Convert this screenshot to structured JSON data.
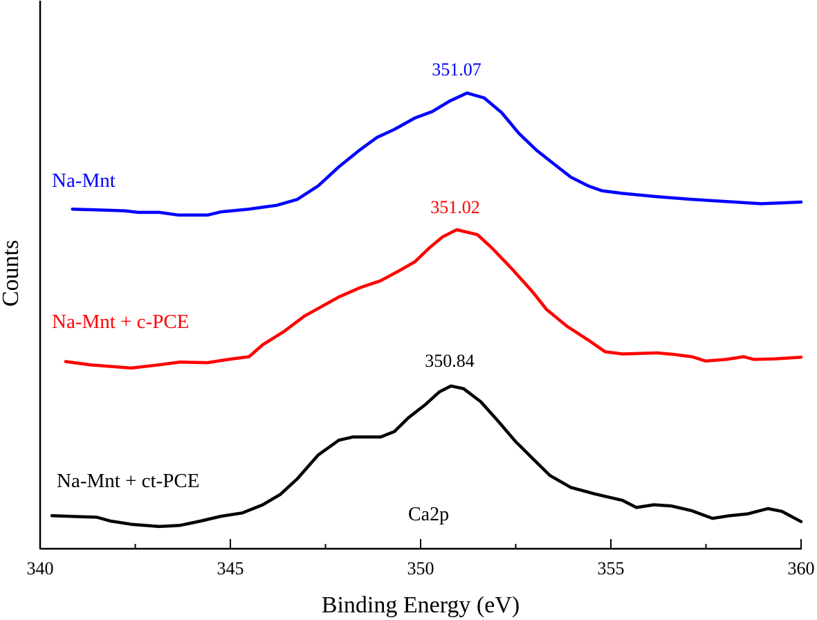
{
  "chart_data": {
    "type": "line",
    "title": "",
    "xlabel": "Binding Energy (eV)",
    "ylabel": "Counts",
    "xlim": [
      340,
      360
    ],
    "ylim": [
      0,
      100
    ],
    "xticks": [
      340,
      345,
      350,
      355,
      360
    ],
    "xminor_ticks": [
      342.5,
      347.5,
      352.5,
      357.5
    ],
    "yticks": [],
    "grid": false,
    "legend": "none",
    "annotations": [
      {
        "text": "Ca2p"
      }
    ],
    "series": [
      {
        "name": "Na-Mnt",
        "color": "#0000ff",
        "peak_label": "351.07",
        "x": [
          340.85,
          342.22,
          342.58,
          343.13,
          343.64,
          344.4,
          344.76,
          345.49,
          346.22,
          346.76,
          347.31,
          347.85,
          348.4,
          348.85,
          349.31,
          349.85,
          350.31,
          350.76,
          351.22,
          351.67,
          352.13,
          352.58,
          353.04,
          353.49,
          353.95,
          354.4,
          354.76,
          355.31,
          356.22,
          357.13,
          358.04,
          358.95,
          360.0
        ],
        "y": [
          62.6,
          62.3,
          62.0,
          62.0,
          61.5,
          61.5,
          62.1,
          62.6,
          63.3,
          64.4,
          66.9,
          70.4,
          73.5,
          75.8,
          77.3,
          79.4,
          80.6,
          82.5,
          84.0,
          83.1,
          80.4,
          76.6,
          73.5,
          71.0,
          68.5,
          66.9,
          66.0,
          65.5,
          64.9,
          64.4,
          64.0,
          63.6,
          63.9
        ]
      },
      {
        "name": "Na-Mnt + c-PCE",
        "color": "#ff0000",
        "peak_label": "351.02",
        "x": [
          340.67,
          341.31,
          342.4,
          343.13,
          343.67,
          344.4,
          344.95,
          345.49,
          345.85,
          346.4,
          346.95,
          347.49,
          347.85,
          348.4,
          348.95,
          349.4,
          349.85,
          350.22,
          350.58,
          350.95,
          351.49,
          351.85,
          352.4,
          352.95,
          353.31,
          353.85,
          354.4,
          354.85,
          355.31,
          356.22,
          356.67,
          357.13,
          357.49,
          358.04,
          358.49,
          358.76,
          359.31,
          360.0
        ],
        "y": [
          34.5,
          33.9,
          33.3,
          33.9,
          34.4,
          34.3,
          34.9,
          35.4,
          37.6,
          40.0,
          42.9,
          45.0,
          46.4,
          48.1,
          49.4,
          51.1,
          52.9,
          55.4,
          57.5,
          58.8,
          57.9,
          55.6,
          51.6,
          47.3,
          44.1,
          41.0,
          38.5,
          36.3,
          35.9,
          36.1,
          35.8,
          35.4,
          34.6,
          34.9,
          35.4,
          34.9,
          35.0,
          35.3
        ]
      },
      {
        "name": "Na-Mnt + ct-PCE",
        "color": "#000000",
        "peak_label": "350.84",
        "x": [
          340.31,
          341.49,
          341.85,
          342.4,
          343.13,
          343.67,
          344.22,
          344.76,
          345.31,
          345.85,
          346.31,
          346.76,
          347.31,
          347.85,
          348.22,
          348.95,
          349.31,
          349.67,
          350.13,
          350.49,
          350.8,
          351.13,
          351.58,
          352.04,
          352.49,
          352.95,
          353.4,
          353.95,
          354.58,
          355.31,
          355.67,
          356.13,
          356.58,
          357.13,
          357.67,
          358.13,
          358.58,
          359.13,
          359.49,
          360.0
        ],
        "y": [
          6.1,
          5.8,
          5.1,
          4.5,
          4.1,
          4.3,
          5.1,
          6.0,
          6.6,
          8.1,
          10.0,
          12.9,
          17.3,
          20.0,
          20.6,
          20.6,
          21.6,
          24.1,
          26.6,
          28.9,
          30.0,
          29.5,
          27.1,
          23.5,
          19.8,
          16.6,
          13.5,
          11.3,
          10.1,
          8.9,
          7.6,
          8.1,
          7.9,
          7.0,
          5.6,
          6.1,
          6.4,
          7.4,
          6.9,
          5.0
        ]
      }
    ]
  }
}
